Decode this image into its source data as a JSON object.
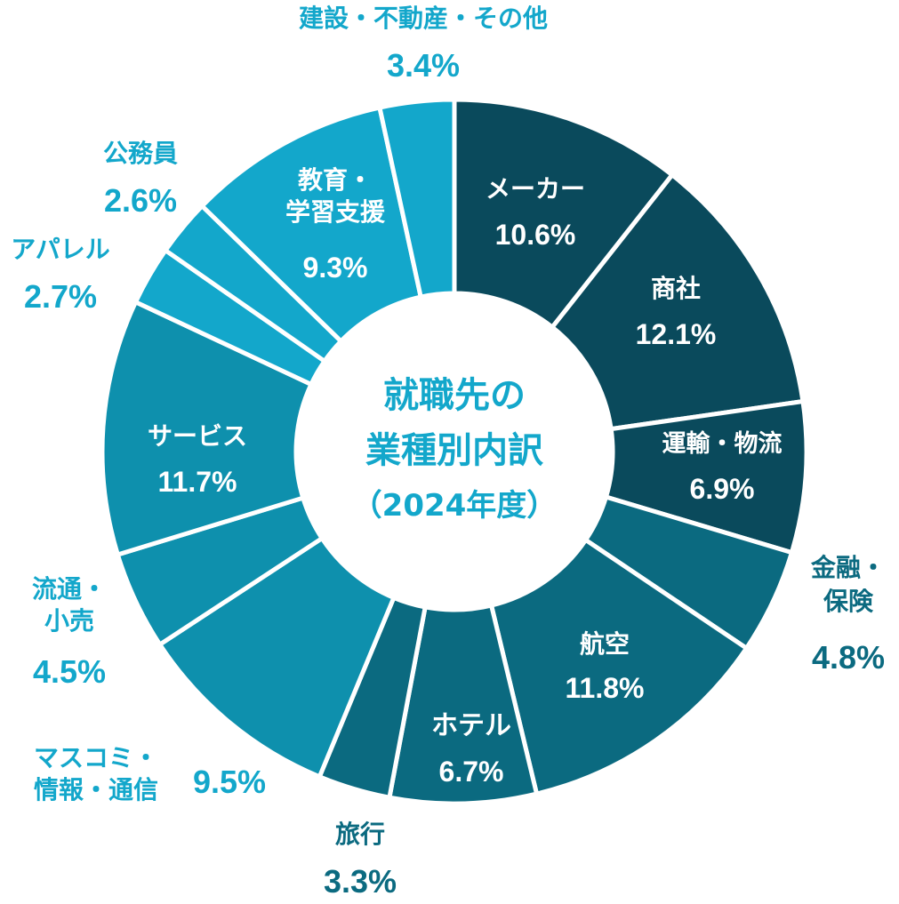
{
  "chart_data": {
    "type": "pie",
    "donut": true,
    "title": "就職先の業種別内訳（2024年度）",
    "title_lines": [
      "就職先の",
      "業種別内訳",
      "（2024年度）"
    ],
    "unit": "%",
    "slices": [
      {
        "label": "メーカー",
        "lines": [
          "メーカー"
        ],
        "value": 10.6,
        "display": "10.6%",
        "color": "#0a4a5c"
      },
      {
        "label": "商社",
        "lines": [
          "商社"
        ],
        "value": 12.1,
        "display": "12.1%",
        "color": "#0a4a5c"
      },
      {
        "label": "運輸・物流",
        "lines": [
          "運輸・物流"
        ],
        "value": 6.9,
        "display": "6.9%",
        "color": "#0a4a5c"
      },
      {
        "label": "金融・保険",
        "lines": [
          "金融・",
          "保険"
        ],
        "value": 4.8,
        "display": "4.8%",
        "color": "#0b6a80"
      },
      {
        "label": "航空",
        "lines": [
          "航空"
        ],
        "value": 11.8,
        "display": "11.8%",
        "color": "#0b6a80"
      },
      {
        "label": "ホテル",
        "lines": [
          "ホテル"
        ],
        "value": 6.7,
        "display": "6.7%",
        "color": "#0b6a80"
      },
      {
        "label": "旅行",
        "lines": [
          "旅行"
        ],
        "value": 3.3,
        "display": "3.3%",
        "color": "#0b6a80"
      },
      {
        "label": "マスコミ・情報・通信",
        "lines": [
          "マスコミ・",
          "情報・通信"
        ],
        "value": 9.5,
        "display": "9.5%",
        "color": "#0e90ad"
      },
      {
        "label": "流通・小売",
        "lines": [
          "流通・",
          "小売"
        ],
        "value": 4.5,
        "display": "4.5%",
        "color": "#0e90ad"
      },
      {
        "label": "サービス",
        "lines": [
          "サービス"
        ],
        "value": 11.7,
        "display": "11.7%",
        "color": "#0e90ad"
      },
      {
        "label": "アパレル",
        "lines": [
          "アパレル"
        ],
        "value": 2.7,
        "display": "2.7%",
        "color": "#13a7cb"
      },
      {
        "label": "公務員",
        "lines": [
          "公務員"
        ],
        "value": 2.6,
        "display": "2.6%",
        "color": "#13a7cb"
      },
      {
        "label": "教育・学習支援",
        "lines": [
          "教育・",
          "学習支援"
        ],
        "value": 9.3,
        "display": "9.3%",
        "color": "#13a7cb"
      },
      {
        "label": "建設・不動産・その他",
        "lines": [
          "建設・不動産・その他"
        ],
        "value": 3.4,
        "display": "3.4%",
        "color": "#13a7cb"
      }
    ],
    "center_text_color": "#13a7cb",
    "outside_label_color_dark": "#0b6a80",
    "outside_label_color_light": "#13a7cb"
  }
}
